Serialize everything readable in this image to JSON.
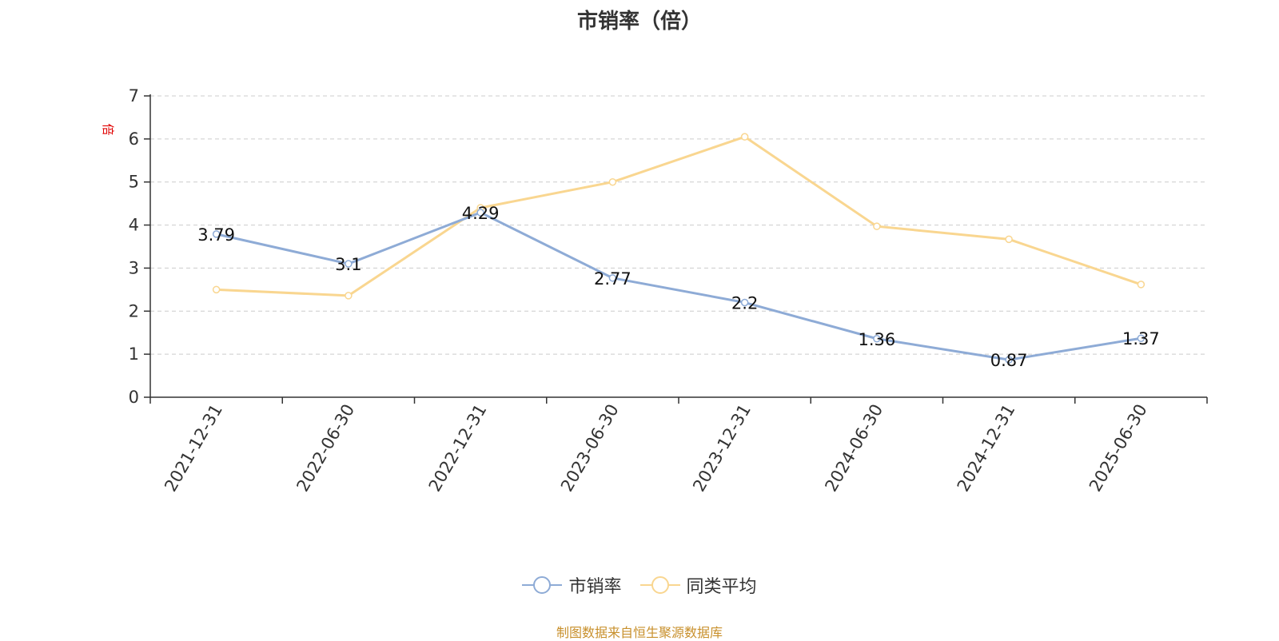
{
  "title": "市销率（倍）",
  "source_text": "制图数据来自恒生聚源数据库",
  "colors": {
    "series1": "#8eabd6",
    "series2": "#f9d690",
    "axis": "#333333",
    "grid": "#cccccc",
    "ylabel": "#e00000",
    "source": "#c8902c"
  },
  "chart_data": {
    "type": "line",
    "title": "市销率（倍）",
    "ylabel": "倍",
    "xlabel": "",
    "categories": [
      "2021-12-31",
      "2022-06-30",
      "2022-12-31",
      "2023-06-30",
      "2023-12-31",
      "2024-06-30",
      "2024-12-31",
      "2025-06-30"
    ],
    "ylim": [
      0,
      7
    ],
    "yticks": [
      0,
      1,
      2,
      3,
      4,
      5,
      6,
      7
    ],
    "grid": true,
    "legend_position": "bottom-center",
    "series": [
      {
        "name": "市销率",
        "values": [
          3.79,
          3.1,
          4.29,
          2.77,
          2.2,
          1.36,
          0.87,
          1.37
        ],
        "labels": [
          "3.79",
          "3.1",
          "4.29",
          "2.77",
          "2.2",
          "1.36",
          "0.87",
          "1.37"
        ],
        "show_labels": true
      },
      {
        "name": "同类平均",
        "values": [
          2.5,
          2.36,
          4.4,
          5.0,
          6.05,
          3.97,
          3.67,
          2.62
        ],
        "show_labels": false
      }
    ]
  }
}
